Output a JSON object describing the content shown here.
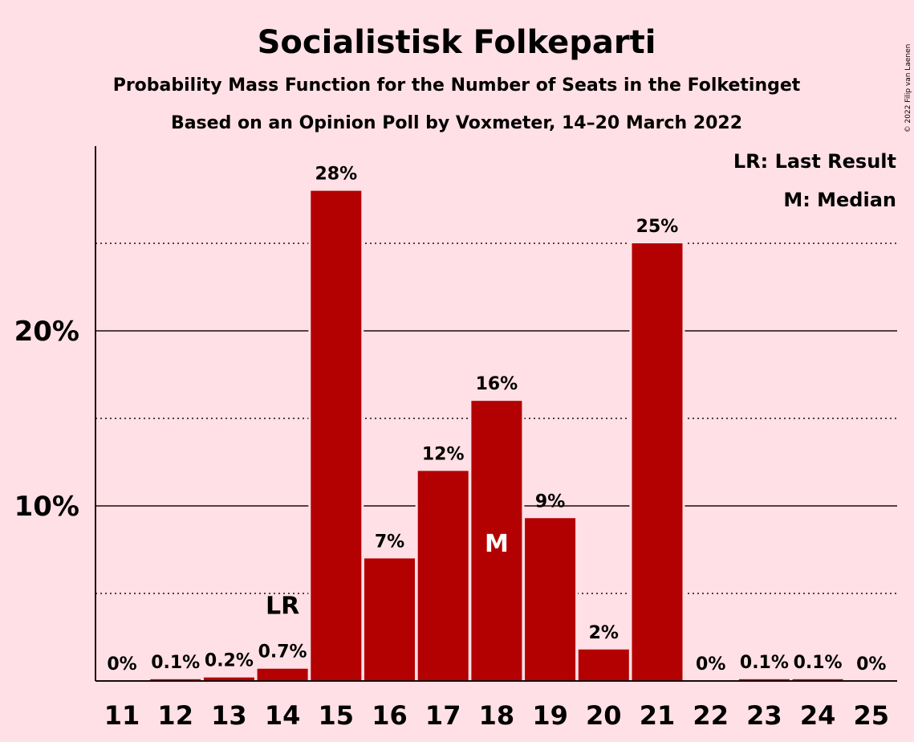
{
  "chart_data": {
    "type": "bar",
    "title": "Socialistisk Folkeparti",
    "subtitle": "Probability Mass Function for the Number of Seats in the Folketinget",
    "subtitle2": "Based on an Opinion Poll by Voxmeter, 14–20 March 2022",
    "copyright": "© 2022 Filip van Laenen",
    "legend": [
      "LR: Last Result",
      "M: Median"
    ],
    "legend_placement": "top-right",
    "categories": [
      "11",
      "12",
      "13",
      "14",
      "15",
      "16",
      "17",
      "18",
      "19",
      "20",
      "21",
      "22",
      "23",
      "24",
      "25"
    ],
    "values": [
      0,
      0.1,
      0.2,
      0.7,
      28,
      7,
      12,
      16,
      9.3,
      1.8,
      25,
      0,
      0.1,
      0.1,
      0
    ],
    "data_labels": [
      "0%",
      "0.1%",
      "0.2%",
      "0.7%",
      "28%",
      "7%",
      "12%",
      "16%",
      "9%",
      "2%",
      "25%",
      "0%",
      "0.1%",
      "0.1%",
      "0%"
    ],
    "y_ticks": [
      {
        "value": 10,
        "label": "10%"
      },
      {
        "value": 20,
        "label": "20%"
      }
    ],
    "dotted_gridlines": [
      5,
      15,
      25
    ],
    "ylim": [
      0,
      30.5
    ],
    "markers": [
      {
        "category": "14",
        "text": "LR",
        "position": "above"
      },
      {
        "category": "18",
        "text": "M",
        "position": "inside"
      }
    ],
    "bar_color": "#b30000",
    "background_color": "#ffe0e6"
  }
}
